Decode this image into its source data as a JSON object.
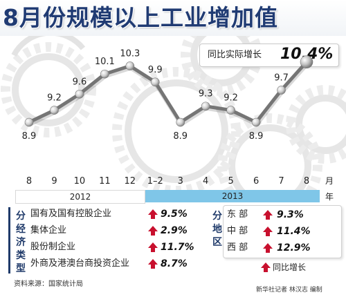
{
  "header": {
    "title": "8月份规模以上工业增加值",
    "badge_label": "同比实际增长",
    "badge_value": "10.4%"
  },
  "chart_data": {
    "type": "line",
    "title": "8月份规模以上工业增加值",
    "x": [
      "8",
      "9",
      "10",
      "11",
      "12",
      "1–2",
      "3",
      "4",
      "5",
      "6",
      "7",
      "8"
    ],
    "values": [
      8.9,
      9.2,
      9.6,
      10.1,
      10.3,
      9.9,
      8.9,
      9.3,
      9.2,
      8.9,
      9.7,
      10.4
    ],
    "data_labels": [
      "8.9",
      "9.2",
      "9.6",
      "10.1",
      "10.3",
      "9.9",
      "8.9",
      "9.3",
      "9.2",
      "8.9",
      "9.7",
      ""
    ],
    "years": [
      {
        "label": "2012",
        "span": [
          "8",
          "12"
        ]
      },
      {
        "label": "2013",
        "span": [
          "1–2",
          "8"
        ]
      }
    ],
    "xunit_month": "月",
    "xunit_year": "年",
    "ylim": [
      8.3,
      10.6
    ],
    "grid": false,
    "colors": {
      "line": "#757575",
      "marker": "#e0e0e0",
      "year_2012": "#ffffff",
      "year_2013": "#7fc6e8"
    }
  },
  "sectors": {
    "heading": "分经济类型",
    "rows": [
      {
        "label": "国有及国有控股企业",
        "value": "9.5%"
      },
      {
        "label": "集体企业",
        "value": "2.9%"
      },
      {
        "label": "股份制企业",
        "value": "11.7%"
      },
      {
        "label": "外商及港澳台商投资企业",
        "value": "8.7%"
      }
    ]
  },
  "regions": {
    "heading": "分地区",
    "rows": [
      {
        "label": "东  部",
        "value": "9.3%"
      },
      {
        "label": "中  部",
        "value": "11.4%"
      },
      {
        "label": "西  部",
        "value": "12.9%"
      }
    ]
  },
  "legend": {
    "label": "同比增长",
    "arrow_color": "#c8102e"
  },
  "footer": {
    "source": "资料来源：国家统计局",
    "credit": "新华社记者 林汉志 编制"
  }
}
